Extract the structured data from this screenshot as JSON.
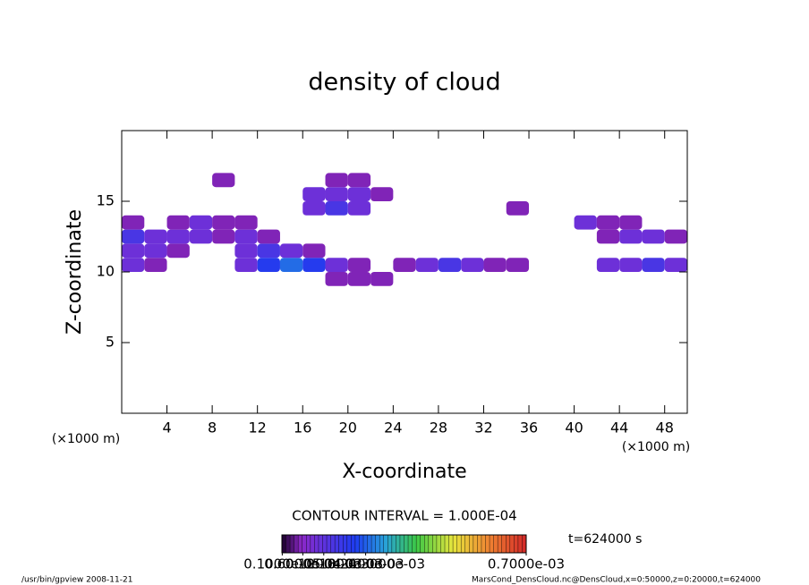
{
  "chart_data": {
    "type": "contourf",
    "title": "density of cloud",
    "xlabel": "X-coordinate",
    "ylabel": "Z-coordinate",
    "x_unit": "(×1000 m)",
    "xlim": [
      0,
      50
    ],
    "ylim": [
      0,
      20
    ],
    "xticks": [
      4,
      8,
      12,
      16,
      20,
      24,
      28,
      32,
      36,
      40,
      44,
      48
    ],
    "yticks": [
      5,
      10,
      15
    ],
    "x": [
      1,
      3,
      5,
      7,
      9,
      11,
      13,
      15,
      17,
      19,
      21,
      23,
      25,
      27,
      29,
      31,
      33,
      35,
      37,
      39,
      41,
      43,
      45,
      47,
      49
    ],
    "z": [
      9.5,
      10.5,
      11.5,
      12.5,
      13.5,
      14.5,
      15.5,
      16.5
    ],
    "values": [
      [
        null,
        null,
        null,
        null,
        null,
        null,
        null,
        null,
        null,
        5e-05,
        5e-05,
        5e-05,
        null,
        null,
        null,
        null,
        null,
        null,
        null,
        null,
        null,
        null,
        null,
        null,
        null
      ],
      [
        0.0001,
        5e-05,
        null,
        null,
        null,
        0.0001,
        0.0002,
        0.00025,
        0.0002,
        0.0001,
        5e-05,
        null,
        5e-05,
        0.0001,
        0.00015,
        0.0001,
        5e-05,
        5e-05,
        null,
        null,
        null,
        0.0001,
        0.0001,
        0.00015,
        0.0001
      ],
      [
        0.0001,
        0.0001,
        5e-05,
        null,
        null,
        0.0001,
        0.00015,
        0.0001,
        5e-05,
        null,
        null,
        null,
        null,
        null,
        null,
        null,
        null,
        null,
        null,
        null,
        null,
        null,
        null,
        null,
        null
      ],
      [
        0.00015,
        0.0001,
        0.0001,
        0.0001,
        5e-05,
        0.0001,
        5e-05,
        null,
        null,
        null,
        null,
        null,
        null,
        null,
        null,
        null,
        null,
        null,
        null,
        null,
        null,
        5e-05,
        0.0001,
        0.0001,
        5e-05
      ],
      [
        5e-05,
        null,
        5e-05,
        0.0001,
        5e-05,
        5e-05,
        null,
        null,
        null,
        null,
        null,
        null,
        null,
        null,
        null,
        null,
        null,
        null,
        null,
        null,
        0.0001,
        5e-05,
        5e-05,
        null,
        null
      ],
      [
        null,
        null,
        null,
        null,
        null,
        null,
        null,
        null,
        0.0001,
        0.00015,
        0.0001,
        null,
        null,
        null,
        null,
        null,
        null,
        5e-05,
        null,
        null,
        null,
        null,
        null,
        null,
        null
      ],
      [
        null,
        null,
        null,
        null,
        null,
        null,
        null,
        null,
        0.0001,
        0.0001,
        0.0001,
        5e-05,
        null,
        null,
        null,
        null,
        null,
        null,
        null,
        null,
        null,
        null,
        null,
        null,
        null
      ],
      [
        null,
        null,
        null,
        null,
        5e-05,
        null,
        null,
        null,
        null,
        5e-05,
        5e-05,
        null,
        null,
        null,
        null,
        null,
        null,
        null,
        null,
        null,
        null,
        null,
        null,
        null,
        null
      ]
    ],
    "contour_interval": "CONTOUR INTERVAL = 1.000E-04",
    "clim": [
      0,
      0.0007
    ],
    "cticks": [
      {
        "value": 1e-06,
        "label": "0.1000e-05"
      },
      {
        "value": 6e-05,
        "label": "0.6000e-04"
      },
      {
        "value": 0.00012,
        "label": "0.1200e-03"
      },
      {
        "value": 0.00018,
        "label": "0.1800e-03"
      },
      {
        "value": 0.00024,
        "label": "0.2400e-03"
      },
      {
        "value": 0.0003,
        "label": "0.3000e-03"
      },
      {
        "value": 0.0007,
        "label": "0.7000e-03"
      }
    ],
    "time_label": "t=624000 s",
    "footer_left": "/usr/bin/gpview  2008-11-21",
    "footer_right": "MarsCond_DensCloud.nc@DensCloud,x=0:50000,z=0:20000,t=624000"
  }
}
